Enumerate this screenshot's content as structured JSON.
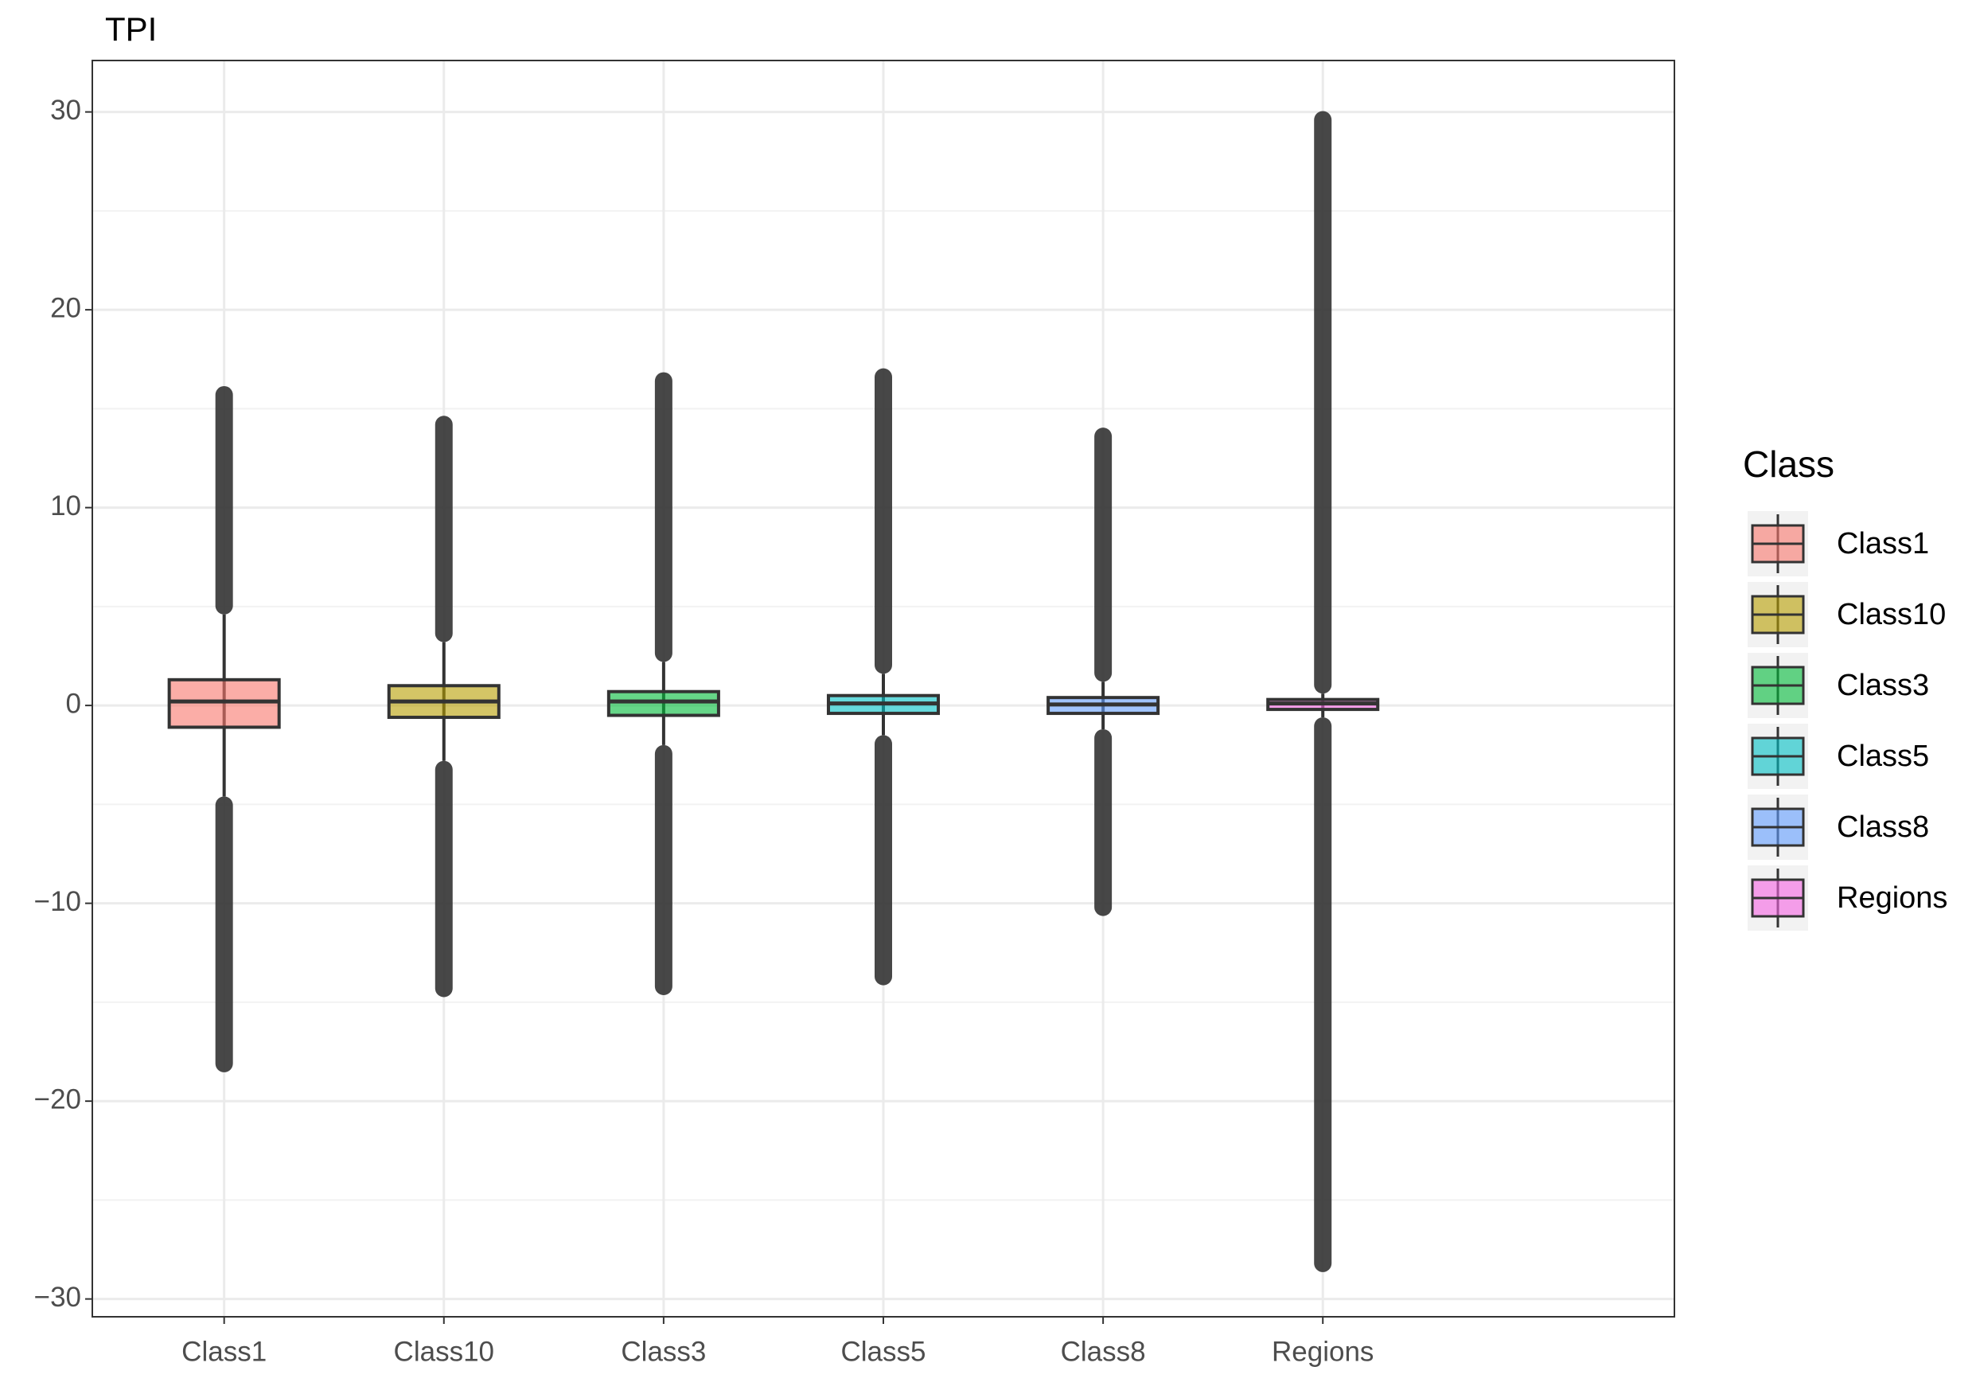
{
  "chart_data": {
    "type": "box",
    "y_label": "TPI",
    "categories": [
      "Class1",
      "Class10",
      "Class3",
      "Class5",
      "Class8",
      "Regions"
    ],
    "legend_title": "Class",
    "series": [
      {
        "name": "Class1",
        "color": "#F8766D",
        "min": -18.1,
        "lower": -4.6,
        "q1": -1.1,
        "median": 0.2,
        "q3": 1.3,
        "upper": 4.6,
        "max": 15.7
      },
      {
        "name": "Class10",
        "color": "#B79F00",
        "min": -14.3,
        "lower": -2.8,
        "q1": -0.6,
        "median": 0.2,
        "q3": 1.0,
        "upper": 3.2,
        "max": 14.2
      },
      {
        "name": "Class3",
        "color": "#00BA38",
        "min": -14.2,
        "lower": -2.0,
        "q1": -0.5,
        "median": 0.2,
        "q3": 0.7,
        "upper": 2.2,
        "max": 16.4
      },
      {
        "name": "Class5",
        "color": "#00BFC4",
        "min": -13.7,
        "lower": -1.5,
        "q1": -0.4,
        "median": 0.1,
        "q3": 0.5,
        "upper": 1.6,
        "max": 16.6
      },
      {
        "name": "Class8",
        "color": "#619CFF",
        "min": -10.2,
        "lower": -1.2,
        "q1": -0.4,
        "median": 0.05,
        "q3": 0.4,
        "upper": 1.2,
        "max": 13.6
      },
      {
        "name": "Regions",
        "color": "#F564E3",
        "min": -28.2,
        "lower": -0.6,
        "q1": -0.2,
        "median": 0.1,
        "q3": 0.3,
        "upper": 0.6,
        "max": 29.6
      }
    ],
    "ylim": [
      -30.9,
      32.6
    ],
    "yticks": [
      {
        "value": -30,
        "label": "−30"
      },
      {
        "value": -20,
        "label": "−20"
      },
      {
        "value": -10,
        "label": "−10"
      },
      0,
      10,
      20,
      30
    ],
    "yminor": [
      -25,
      -15,
      -5,
      5,
      15,
      25
    ],
    "grid": true,
    "legend": "right"
  }
}
